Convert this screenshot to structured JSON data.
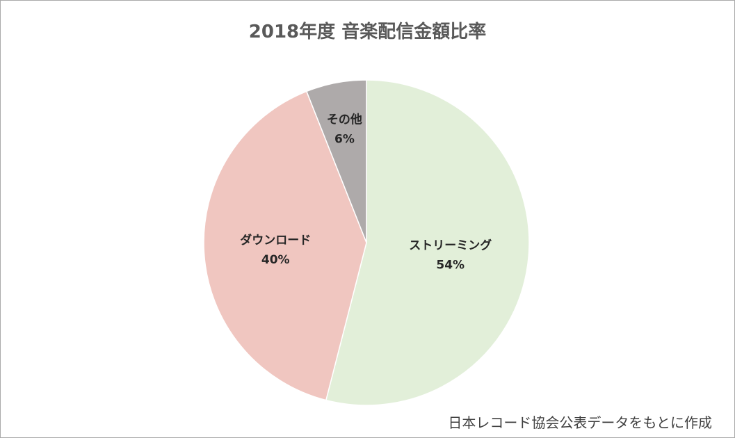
{
  "chart_data": {
    "type": "pie",
    "title": "2018年度 音楽配信金額比率",
    "categories": [
      "ストリーミング",
      "ダウンロード",
      "その他"
    ],
    "values": [
      54,
      40,
      6
    ],
    "value_labels": [
      "54%",
      "40%",
      "6%"
    ],
    "colors": [
      "#e2efd9",
      "#f0c6c0",
      "#aeaaaa"
    ],
    "start": "12 o'clock",
    "direction": "clockwise",
    "legend": "none"
  },
  "source_note": "日本レコード協会公表データをもとに作成"
}
